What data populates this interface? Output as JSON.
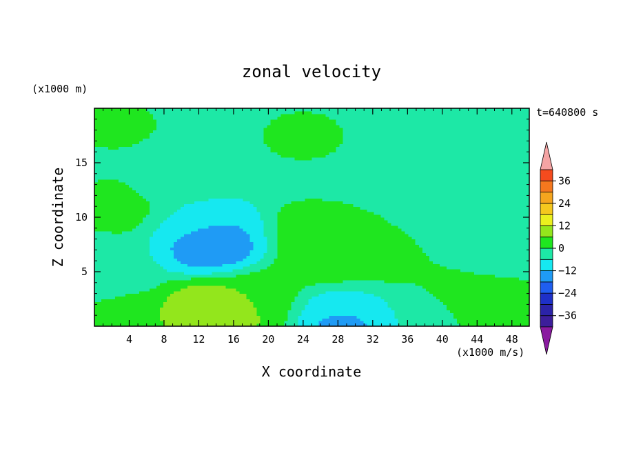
{
  "chart_data": {
    "type": "heatmap",
    "title": "zonal velocity",
    "xlabel": "X coordinate",
    "ylabel": "Z coordinate",
    "x_unit": "(x1000 m/s)",
    "y_unit": "(x1000 m)",
    "time_label": "t=640800 s",
    "xlim": [
      0,
      50
    ],
    "ylim": [
      0,
      20
    ],
    "x_ticks": [
      4,
      8,
      12,
      16,
      20,
      24,
      28,
      32,
      36,
      40,
      44,
      48
    ],
    "y_ticks": [
      5,
      10,
      15
    ],
    "colorbar": {
      "levels": [
        -42,
        -36,
        -30,
        -24,
        -18,
        -12,
        -6,
        0,
        6,
        12,
        18,
        24,
        30,
        36,
        42
      ],
      "tick_values": [
        36,
        24,
        12,
        0,
        -12,
        -24,
        -36
      ],
      "tick_labels": [
        "36",
        "24",
        "12",
        "0",
        "−12",
        "−24",
        "−36"
      ],
      "colors": [
        "#3c1e9b",
        "#2b23a8",
        "#1e30c8",
        "#1f5ef0",
        "#1f9bf5",
        "#16e8f0",
        "#1de8a6",
        "#1fe61f",
        "#93e61c",
        "#ebf01e",
        "#f5c81e",
        "#f5a51e",
        "#f5781e",
        "#f54b1e"
      ],
      "under_color": "#8a1aa0",
      "over_color": "#f5a4a4"
    },
    "features": [
      {
        "x": 14,
        "z": 1.0,
        "value": 14
      },
      {
        "x": 14,
        "z": 1.8,
        "value": 9
      },
      {
        "x": 18,
        "z": 1.0,
        "value": 5
      },
      {
        "x": 4.5,
        "z": 0.3,
        "value": 6
      },
      {
        "x": 28.5,
        "z": 0.4,
        "value": -18
      },
      {
        "x": 28,
        "z": 1.5,
        "value": -8
      },
      {
        "x": 14,
        "z": 8.0,
        "value": -13
      },
      {
        "x": 14,
        "z": 7.5,
        "value": -19
      },
      {
        "x": 13,
        "z": 9.0,
        "value": -9
      },
      {
        "x": 27.5,
        "z": 7.3,
        "value": 9
      },
      {
        "x": 27,
        "z": 6.0,
        "value": 4
      },
      {
        "x": 24.5,
        "z": 8.5,
        "value": 3
      },
      {
        "x": 19.5,
        "z": 3.2,
        "value": 4
      },
      {
        "x": 41.5,
        "z": 3.2,
        "value": 3
      },
      {
        "x": 47,
        "z": 1.5,
        "value": 3
      },
      {
        "x": 36,
        "z": 1.5,
        "value": -5
      },
      {
        "x": 34.5,
        "z": 5.7,
        "value": 2
      },
      {
        "x": 1,
        "z": 5.0,
        "value": -4
      },
      {
        "x": 44,
        "z": 7.5,
        "value": -5
      },
      {
        "x": 24,
        "z": 17.5,
        "value": 1
      },
      {
        "x": 3,
        "z": 11.0,
        "value": 2
      },
      {
        "x": 2.5,
        "z": 18.5,
        "value": 1
      },
      {
        "x": 49,
        "z": 16.5,
        "value": -4
      },
      {
        "x": 10,
        "z": 13.5,
        "value": -4
      }
    ]
  }
}
